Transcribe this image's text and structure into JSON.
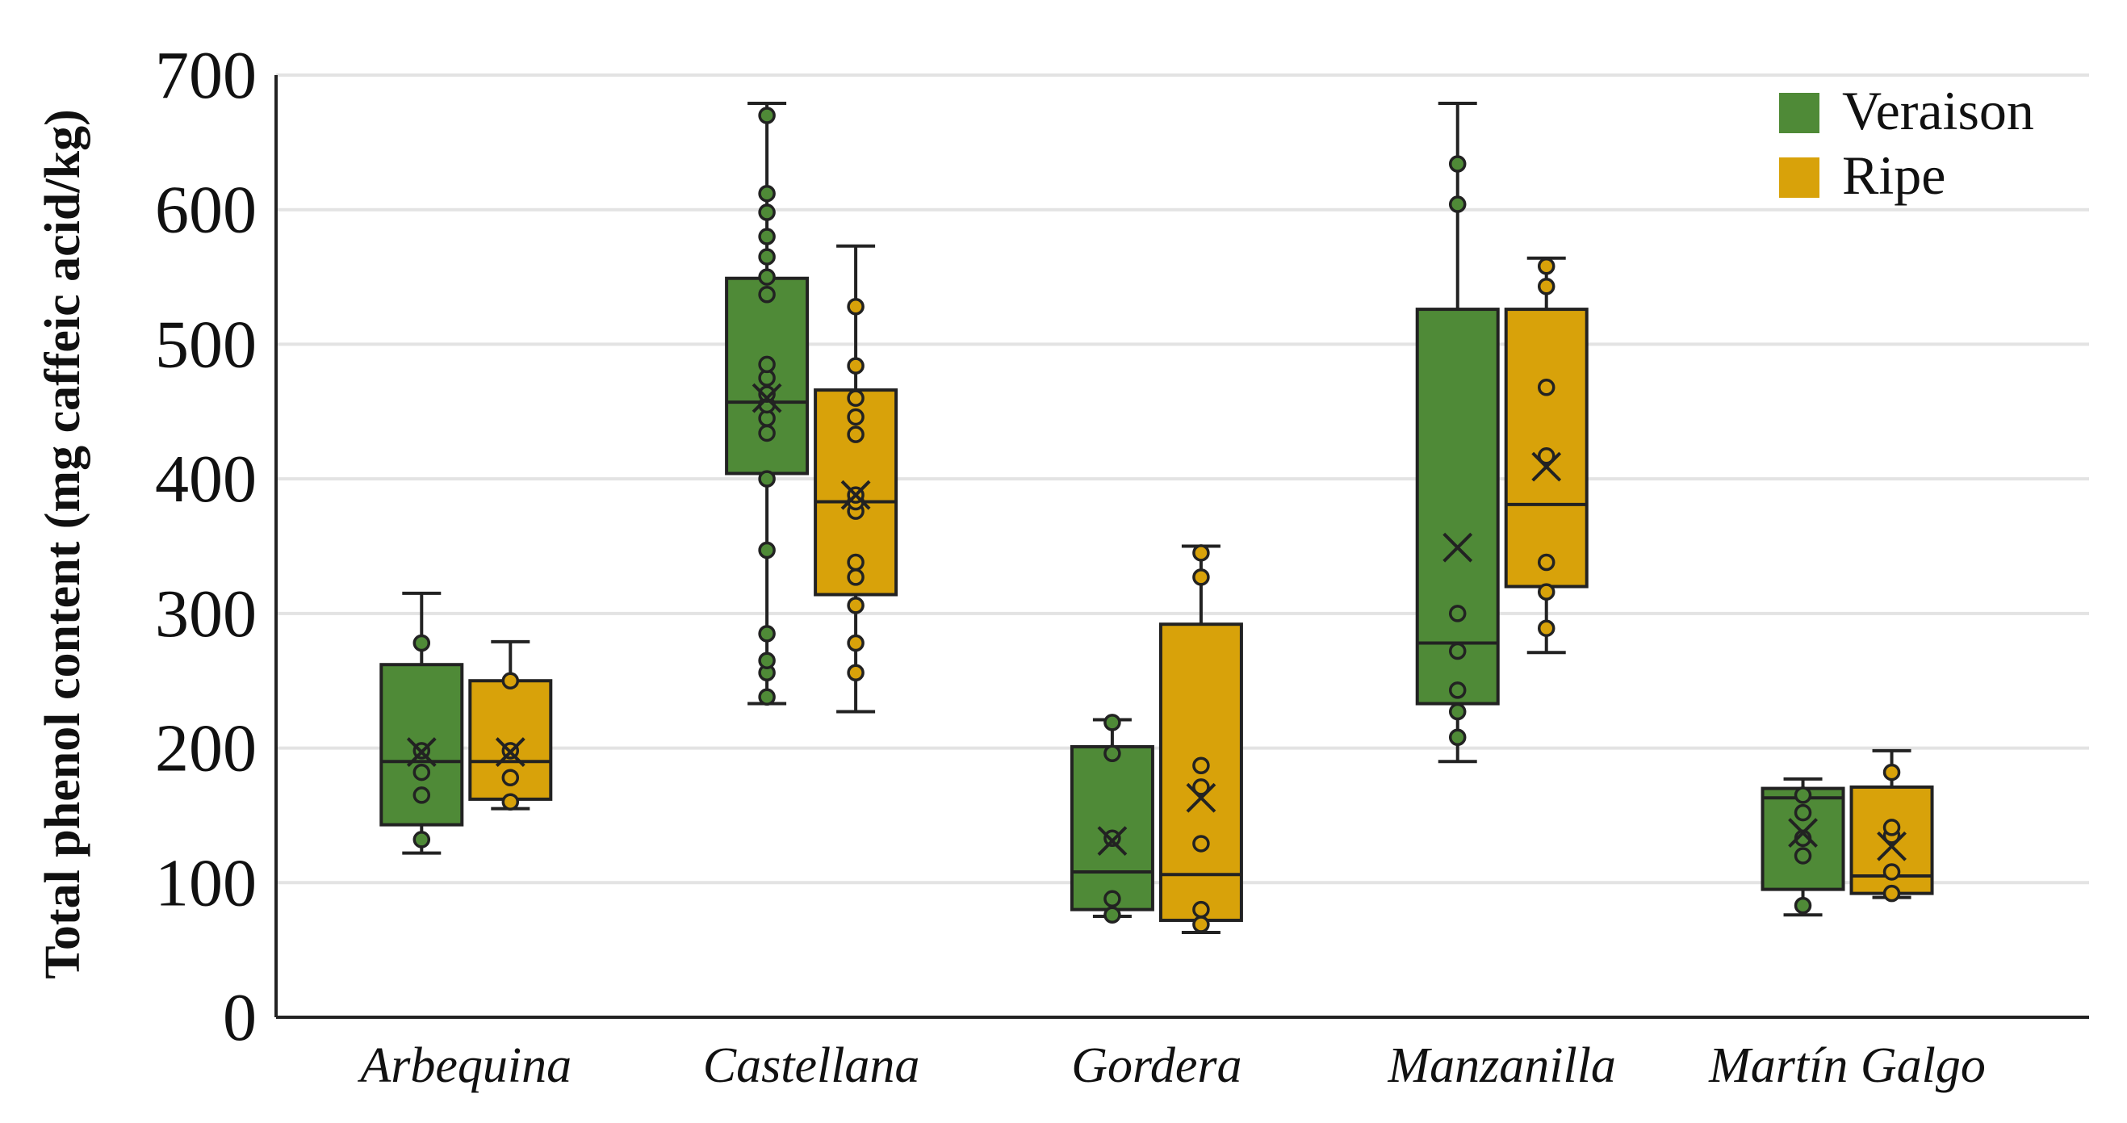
{
  "chart_data": {
    "type": "box",
    "title": "",
    "ylabel": "Total phenol content (mg caffeic acid/kg)",
    "xlabel": "",
    "ylim": [
      0,
      700
    ],
    "yticks": [
      0,
      100,
      200,
      300,
      400,
      500,
      600,
      700
    ],
    "categories": [
      "Arbequina",
      "Castellana",
      "Gordera",
      "Manzanilla",
      "Martín Galgo"
    ],
    "legend_position": "top-right",
    "grid": true,
    "series": [
      {
        "name": "Veraison",
        "color": "#4f8a37",
        "boxes": [
          {
            "min": 122,
            "q1": 143,
            "median": 190,
            "q3": 262,
            "max": 315,
            "mean": 197,
            "points": [
              132,
              165,
              182,
              198,
              278
            ]
          },
          {
            "min": 233,
            "q1": 404,
            "median": 457,
            "q3": 549,
            "max": 679,
            "mean": 460,
            "points": [
              238,
              256,
              265,
              285,
              347,
              400,
              434,
              445,
              455,
              463,
              475,
              485,
              537,
              550,
              565,
              580,
              598,
              612,
              670
            ]
          },
          {
            "min": 75,
            "q1": 80,
            "median": 108,
            "q3": 201,
            "max": 221,
            "mean": 131,
            "points": [
              76,
              88,
              133,
              196,
              219
            ]
          },
          {
            "min": 190,
            "q1": 233,
            "median": 278,
            "q3": 526,
            "max": 679,
            "mean": 349,
            "points": [
              208,
              227,
              243,
              272,
              300,
              604,
              634
            ]
          },
          {
            "min": 76,
            "q1": 95,
            "median": 163,
            "q3": 170,
            "max": 177,
            "mean": 137,
            "points": [
              83,
              120,
              133,
              152,
              165
            ]
          }
        ]
      },
      {
        "name": "Ripe",
        "color": "#d8a20a",
        "boxes": [
          {
            "min": 155,
            "q1": 162,
            "median": 190,
            "q3": 250,
            "max": 279,
            "mean": 197,
            "points": [
              160,
              178,
              198,
              250
            ]
          },
          {
            "min": 227,
            "q1": 314,
            "median": 383,
            "q3": 466,
            "max": 573,
            "mean": 388,
            "points": [
              256,
              278,
              306,
              327,
              338,
              376,
              383,
              388,
              433,
              446,
              460,
              484,
              528
            ]
          },
          {
            "min": 63,
            "q1": 72,
            "median": 106,
            "q3": 292,
            "max": 350,
            "mean": 163,
            "points": [
              69,
              80,
              129,
              171,
              187,
              327,
              345
            ]
          },
          {
            "min": 271,
            "q1": 320,
            "median": 381,
            "q3": 526,
            "max": 564,
            "mean": 409,
            "points": [
              289,
              316,
              338,
              417,
              468,
              543,
              558
            ]
          },
          {
            "min": 89,
            "q1": 92,
            "median": 105,
            "q3": 171,
            "max": 198,
            "mean": 127,
            "points": [
              92,
              108,
              135,
              141,
              182
            ]
          }
        ]
      }
    ]
  }
}
